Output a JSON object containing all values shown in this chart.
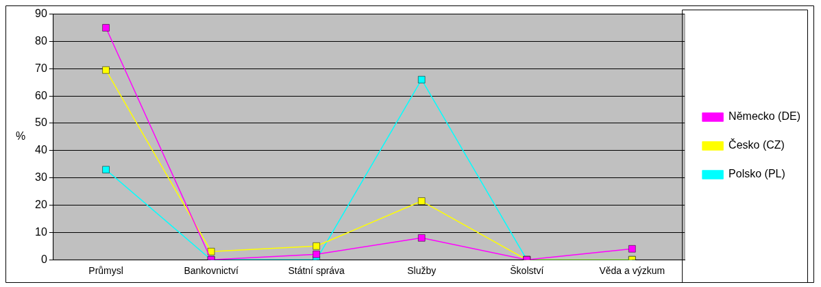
{
  "chart_data": {
    "type": "line",
    "ylabel": "%",
    "categories": [
      "Průmysl",
      "Bankovnictví",
      "Státní správa",
      "Služby",
      "Školství",
      "Věda a výzkum"
    ],
    "series": [
      {
        "name": "Německo (DE)",
        "color": "#ff00ff",
        "values": [
          85,
          0,
          2,
          8,
          0,
          4
        ]
      },
      {
        "name": "Česko (CZ)",
        "color": "#ffff00",
        "values": [
          69.5,
          3,
          5,
          21.5,
          0,
          0
        ]
      },
      {
        "name": "Polsko (PL)",
        "color": "#00ffff",
        "values": [
          33,
          0,
          0,
          66,
          0,
          0
        ]
      }
    ],
    "ylim": [
      0,
      90
    ],
    "yticks": [
      0,
      10,
      20,
      30,
      40,
      50,
      60,
      70,
      80,
      90
    ],
    "grid": "y",
    "legend": "right",
    "marker": "square",
    "line_style": "solid"
  }
}
